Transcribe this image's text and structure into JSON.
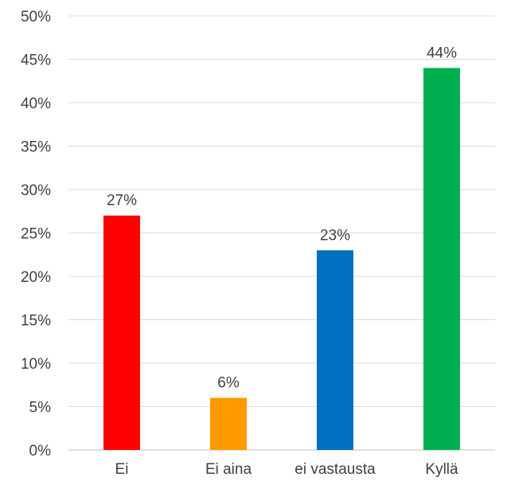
{
  "chart_data": {
    "type": "bar",
    "categories": [
      "Ei",
      "Ei aina",
      "ei vastausta",
      "Kyllä"
    ],
    "values": [
      27,
      6,
      23,
      44
    ],
    "value_labels": [
      "27%",
      "6%",
      "23%",
      "44%"
    ],
    "colors": [
      "#ff0000",
      "#ff9900",
      "#0070c0",
      "#00b050"
    ],
    "ylim": [
      0,
      50
    ],
    "yticks": [
      0,
      5,
      10,
      15,
      20,
      25,
      30,
      35,
      40,
      45,
      50
    ],
    "ytick_labels": [
      "0%",
      "5%",
      "10%",
      "15%",
      "20%",
      "25%",
      "30%",
      "35%",
      "40%",
      "45%",
      "50%"
    ],
    "grid": true,
    "title": "",
    "xlabel": "",
    "ylabel": ""
  }
}
